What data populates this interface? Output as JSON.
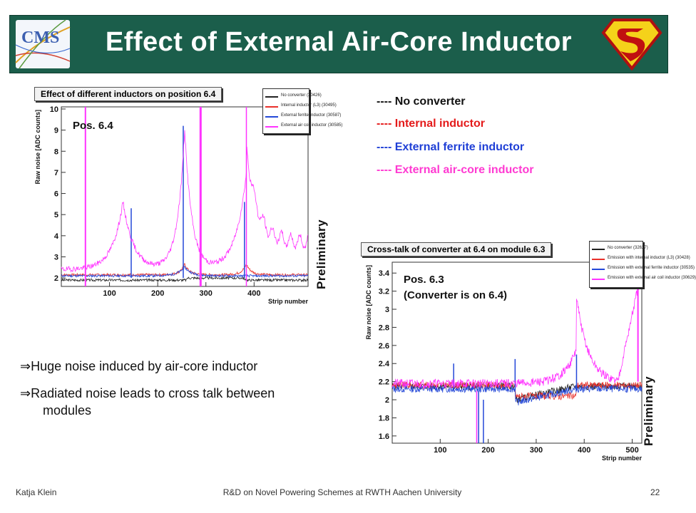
{
  "title": "Effect of External Air-Core Inductor",
  "logos": {
    "left": "CMS",
    "right": "superman-shield"
  },
  "plot1": {
    "title": "Effect of different inductors on position 6.4",
    "position_label": "Pos. 6.4",
    "preliminary": "Preliminary",
    "xlabel": "Strip number",
    "ylabel": "Raw noise [ADC counts]",
    "xticks": [
      "100",
      "200",
      "300",
      "400"
    ],
    "yticks": [
      "2",
      "3",
      "4",
      "5",
      "6",
      "7",
      "8",
      "9",
      "10"
    ],
    "legend": [
      {
        "label": "No converter (30426)",
        "color": "#222222"
      },
      {
        "label": "Internal inductor (L3) (30495)",
        "color": "#e8302a"
      },
      {
        "label": "External ferrite inductor (30587)",
        "color": "#2448d8"
      },
      {
        "label": "External air coil inductor (30585)",
        "color": "#ff33ff"
      }
    ]
  },
  "plot2": {
    "title": "Cross-talk of converter at 6.4 on module 6.3",
    "position_label_line1": "Pos. 6.3",
    "position_label_line2": "(Converter is on 6.4)",
    "preliminary": "Preliminary",
    "xlabel": "Strip number",
    "ylabel": "Raw noise [ADC counts]",
    "xticks": [
      "100",
      "200",
      "300",
      "400",
      "500"
    ],
    "yticks": [
      "1.6",
      "1.8",
      "2",
      "2.2",
      "2.4",
      "2.6",
      "2.8",
      "3",
      "3.2",
      "3.4"
    ],
    "legend": [
      {
        "label": "No converter (32627)",
        "color": "#222222"
      },
      {
        "label": "Emission with internal inductor (L3) (30428)",
        "color": "#e8302a"
      },
      {
        "label": "Emission with external ferrite inductor (30535)",
        "color": "#2448d8"
      },
      {
        "label": "Emission with external air coil inductor (30629)",
        "color": "#ff33ff"
      }
    ]
  },
  "key": [
    {
      "text": "---- No converter",
      "color": "#111111"
    },
    {
      "text": "---- Internal inductor",
      "color": "#e41a1a"
    },
    {
      "text": "---- External ferrite inductor",
      "color": "#1f3fd6"
    },
    {
      "text": "---- External air-core inductor",
      "color": "#ff3ad2"
    }
  ],
  "bullets": {
    "arrow": "⇒",
    "b1": "Huge noise induced by air-core inductor",
    "b2_line1": "Radiated noise leads to cross talk between",
    "b2_line2": "modules"
  },
  "footer": {
    "author": "Katja Klein",
    "talk": "R&D on Novel Powering Schemes at RWTH Aachen University",
    "page": "22"
  }
}
